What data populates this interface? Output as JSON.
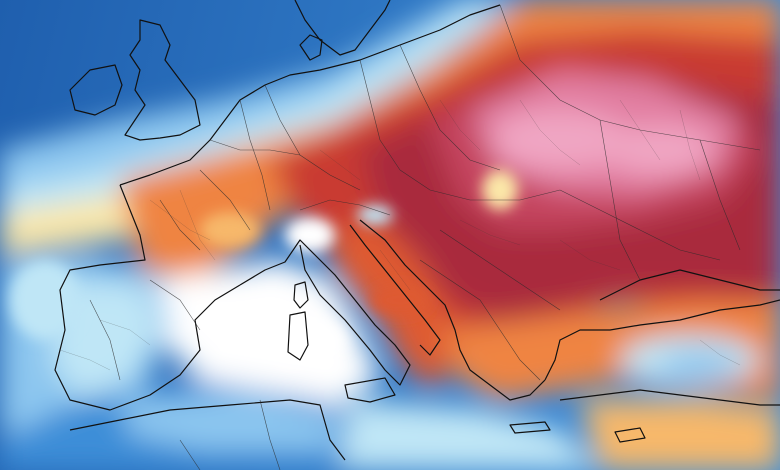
{
  "map": {
    "region": "",
    "palette": {
      "deep_blue": "#1f5fae",
      "blue": "#3e8ed8",
      "light_blue": "#8cc6ef",
      "cyan": "#bfe6f6",
      "white": "#ffffff",
      "pale_yellow": "#fbe7a8",
      "yellow_orange": "#f7b86a",
      "orange": "#ef8443",
      "red_orange": "#de5a33",
      "red": "#c93a32",
      "crimson": "#a92b3c",
      "magenta_red": "#c5455f",
      "pink": "#e27ea1",
      "light_pink": "#f0a6c3",
      "coast_color": "#111111",
      "border_color": "#2a2a2a"
    }
  }
}
